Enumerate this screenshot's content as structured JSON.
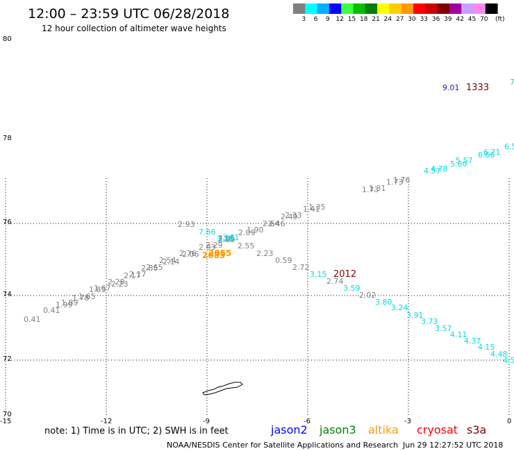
{
  "header": {
    "title": "12:00 – 23:59 UTC 06/28/2018",
    "subtitle": "12 hour collection of altimeter wave heights"
  },
  "color_scale": {
    "unit_label": "(ft)",
    "bins": [
      {
        "label": "3",
        "color": "#7f7f7f"
      },
      {
        "label": "6",
        "color": "#00ffff"
      },
      {
        "label": "9",
        "color": "#00b0ff"
      },
      {
        "label": "12",
        "color": "#0000ff"
      },
      {
        "label": "15",
        "color": "#40ff40"
      },
      {
        "label": "18",
        "color": "#00c000"
      },
      {
        "label": "21",
        "color": "#008000"
      },
      {
        "label": "24",
        "color": "#ffff00"
      },
      {
        "label": "27",
        "color": "#ffcc00"
      },
      {
        "label": "30",
        "color": "#ff9900"
      },
      {
        "label": "33",
        "color": "#ff0000"
      },
      {
        "label": "36",
        "color": "#cc0000"
      },
      {
        "label": "39",
        "color": "#800000"
      },
      {
        "label": "42",
        "color": "#a000a0"
      },
      {
        "label": "45",
        "color": "#c8a0ff"
      },
      {
        "label": "70",
        "color": "#ff88ee"
      },
      {
        "label": "",
        "color": "#000000"
      }
    ]
  },
  "map_axes": {
    "lon_ticks": [
      "-15",
      "-12",
      "-9",
      "-6",
      "-3",
      "0"
    ],
    "lat_ticks": [
      "70",
      "72",
      "74",
      "76",
      "78",
      "80"
    ]
  },
  "wave_heights": {
    "gray": [
      "0.41",
      "0.41",
      "1.99",
      "1.89",
      "1.78",
      "1.65",
      "1.83",
      "1.67",
      "2.28",
      "2.23",
      "2.17",
      "2.17",
      "2.85",
      "2.65",
      "2.54",
      "2.14",
      "2.76",
      "2.06",
      "2.93",
      "2.29",
      "2.93",
      "2.89",
      "2.55",
      "2.05",
      "1.90",
      "2.09",
      "2.64",
      "2.46",
      "2.33",
      "2.49",
      "1.35",
      "1.41",
      "1.31",
      "1.73",
      "1.76",
      "1.73",
      "2.23",
      "0.59",
      "2.72",
      "2.74",
      "2.02"
    ],
    "cyan": [
      "7.86",
      "3.61",
      "3.28",
      "4.57",
      "4.78",
      "5.60",
      "5.57",
      "6.66",
      "6.71",
      "6.5",
      "7",
      "3.15",
      "3.59",
      "3.80",
      "3.24",
      "3.91",
      "3.73",
      "3.57",
      "4.11",
      "4.37",
      "4.15",
      "4.48",
      "4.5"
    ],
    "orange": [
      "2085",
      "2055"
    ],
    "blue": [
      "9.01"
    ],
    "red": [
      "2012",
      "1333"
    ]
  },
  "colors": {
    "gray": "#7f7f7f",
    "cyan": "#00dddd",
    "orange": "#ff9900",
    "blue": "#1a1aa8",
    "red": "#800000",
    "jason2": "#0000ff",
    "jason3": "#008000",
    "altika": "#ff9900",
    "cryosat": "#ff0000",
    "s3a": "#800000"
  },
  "footer": {
    "note": "note:  1) Time is in UTC;  2) SWH is in feet",
    "satellites": {
      "jason2": "jason2",
      "jason3": "jason3",
      "altika": "altika",
      "cryosat": "cryosat",
      "s3a": "s3a"
    },
    "credit": "NOAA/NESDIS Center for Satellite Applications and Research",
    "timestamp": "Jun 29 12:27:52 UTC 2018"
  }
}
